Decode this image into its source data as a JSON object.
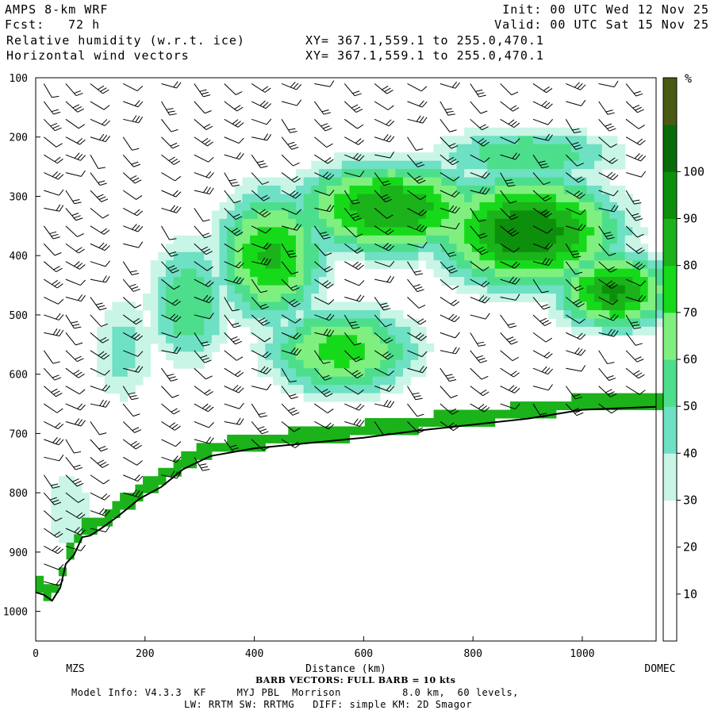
{
  "header": {
    "model": "AMPS 8-km WRF",
    "fcst_label": "Fcst:",
    "fcst_value": "72 h",
    "var1": "Relative humidity (w.r.t. ice)",
    "var2": "Horizontal wind vectors",
    "xy1": "XY= 367.1,559.1 to 255.0,470.1",
    "xy2": "XY= 367.1,559.1 to 255.0,470.1",
    "init": "Init: 00 UTC Wed 12 Nov 25",
    "valid": "Valid: 00 UTC Sat 15 Nov 25"
  },
  "footer": {
    "barb_note": "BARB VECTORS: FULL BARB = 10 kts",
    "line1": "Model Info: V4.3.3  KF     MYJ PBL  Morrison          8.0 km,  60 levels,",
    "line2": "LW: RRTM SW: RRTMG   DIFF: simple KM: 2D Smagor"
  },
  "chart_data": {
    "type": "heatmap",
    "title": "Relative humidity (w.r.t. ice)",
    "xlabel": "Distance (km)",
    "ylabel": "",
    "x_ticks": [
      0,
      200,
      400,
      600,
      800,
      1000
    ],
    "y_ticks": [
      100,
      200,
      300,
      400,
      500,
      600,
      700,
      800,
      900,
      1000
    ],
    "xlim": [
      0,
      1135
    ],
    "ylim": [
      1050,
      100
    ],
    "x_end_labels": [
      "MZS",
      "DOMEC"
    ],
    "colorbar": {
      "unit": "%",
      "ticks": [
        10,
        20,
        30,
        40,
        50,
        60,
        70,
        80,
        90,
        100
      ],
      "levels": [
        0,
        10,
        20,
        30,
        40,
        50,
        60,
        70,
        80,
        90,
        100,
        110
      ],
      "colors": [
        "#ffffff",
        "#ffffff",
        "#ffffff",
        "#c8f5e6",
        "#6ee0c4",
        "#4dde8c",
        "#7ff07f",
        "#16d91a",
        "#1bb21a",
        "#0d8f0c",
        "#0a6b0a",
        "#4a5a14"
      ]
    },
    "terrain_pressure": [
      {
        "x": 0,
        "p": 968
      },
      {
        "x": 15,
        "p": 972
      },
      {
        "x": 30,
        "p": 982
      },
      {
        "x": 45,
        "p": 960
      },
      {
        "x": 55,
        "p": 920
      },
      {
        "x": 70,
        "p": 905
      },
      {
        "x": 85,
        "p": 875
      },
      {
        "x": 100,
        "p": 872
      },
      {
        "x": 120,
        "p": 860
      },
      {
        "x": 150,
        "p": 840
      },
      {
        "x": 190,
        "p": 810
      },
      {
        "x": 230,
        "p": 790
      },
      {
        "x": 270,
        "p": 760
      },
      {
        "x": 320,
        "p": 738
      },
      {
        "x": 400,
        "p": 725
      },
      {
        "x": 500,
        "p": 716
      },
      {
        "x": 600,
        "p": 707
      },
      {
        "x": 700,
        "p": 695
      },
      {
        "x": 800,
        "p": 685
      },
      {
        "x": 900,
        "p": 675
      },
      {
        "x": 1000,
        "p": 660
      },
      {
        "x": 1080,
        "p": 657
      },
      {
        "x": 1135,
        "p": 655
      }
    ],
    "rh_features": [
      {
        "x": 900,
        "p": 360,
        "rx": 230,
        "rp": 130,
        "value": 100
      },
      {
        "x": 1060,
        "p": 460,
        "rx": 150,
        "rp": 90,
        "value": 92
      },
      {
        "x": 650,
        "p": 320,
        "rx": 250,
        "rp": 110,
        "value": 90
      },
      {
        "x": 430,
        "p": 400,
        "rx": 140,
        "rp": 160,
        "value": 82
      },
      {
        "x": 560,
        "p": 560,
        "rx": 200,
        "rp": 110,
        "value": 75
      },
      {
        "x": 280,
        "p": 480,
        "rx": 110,
        "rp": 160,
        "value": 60
      },
      {
        "x": 160,
        "p": 560,
        "rx": 90,
        "rp": 150,
        "value": 45
      },
      {
        "x": 60,
        "p": 830,
        "rx": 80,
        "rp": 120,
        "value": 40
      },
      {
        "x": 900,
        "p": 230,
        "rx": 260,
        "rp": 70,
        "value": 60
      }
    ],
    "barb_columns_x": [
      15,
      55,
      100,
      160,
      230,
      290,
      345,
      395,
      450,
      510,
      565,
      620,
      680,
      740,
      795,
      850,
      910,
      970,
      1030,
      1080
    ],
    "barb_levels_p": [
      110,
      140,
      170,
      200,
      230,
      260,
      290,
      320,
      350,
      380,
      410,
      440,
      470,
      500,
      530,
      560,
      590,
      620,
      650,
      680,
      710,
      740,
      770,
      800,
      830,
      860,
      890,
      920,
      950
    ]
  }
}
